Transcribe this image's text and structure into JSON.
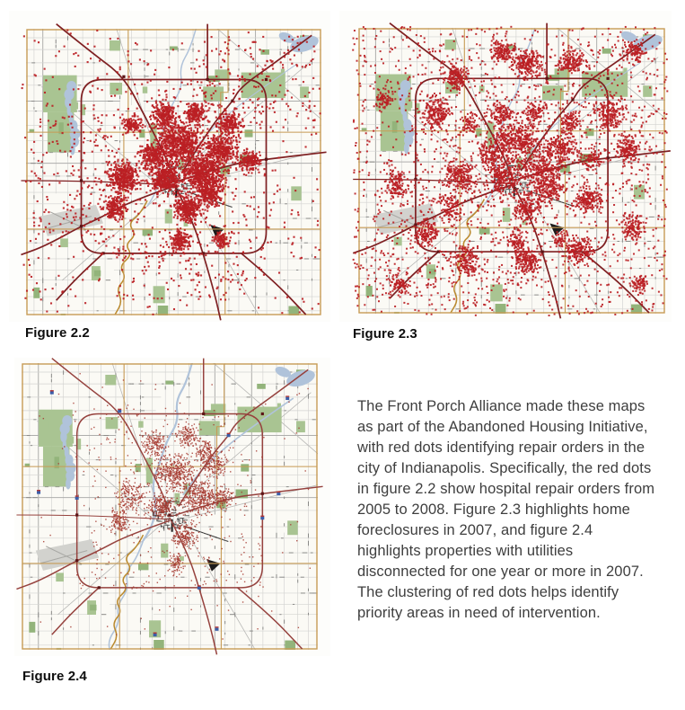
{
  "description": {
    "text": "The Front Porch Alliance made these maps as part of the Abandoned Housing Initiative, with red dots identifying repair orders in the city of Indianapolis. Specifically, the red dots in figure 2.2 show hospital repair orders from 2005 to 2008. Figure 2.3 highlights home foreclosures in 2007, and figure 2.4 highlights properties with utilities disconnected for one year or more in 2007. The clustering of red dots helps identify priority areas in need of intervention."
  },
  "map_style": {
    "tile_bg": "#fdfdfb",
    "county_bg": "#fbfaf5",
    "boundary": "#c79b55",
    "street_light": "#d3d3d1",
    "street_dark": "#aeaeac",
    "street_tick": "#8a8a88",
    "diagonal": "#b9b9b7",
    "park": "#a9c492",
    "park_dark": "#93b47b",
    "water": "#b0c3da",
    "river_gold": "#bb8a2e",
    "airport_fill": "#d2d2ce",
    "airport_line": "#a8a8a4",
    "highway": "#7f2022",
    "highway_node": "#5c1416",
    "highway_fig24": "#96423e",
    "downtown": "#4c4c4c",
    "black_mark": "#1c1c1c",
    "shield_blue": "#3c5da8",
    "shield_red": "#b03030"
  },
  "figures": [
    {
      "label": "Figure 2.2",
      "subject": "hospital repair orders from 2005 to 2008",
      "dot_color": "#bb1f24",
      "dot_size": 2.1,
      "dot_alpha": 0.92,
      "dot_seed": 11,
      "clusters": [
        [
          0.52,
          0.4,
          0.085,
          0.075,
          650
        ],
        [
          0.6,
          0.5,
          0.08,
          0.07,
          550
        ],
        [
          0.47,
          0.52,
          0.06,
          0.06,
          420
        ],
        [
          0.55,
          0.63,
          0.05,
          0.05,
          300
        ],
        [
          0.66,
          0.42,
          0.06,
          0.05,
          320
        ],
        [
          0.43,
          0.44,
          0.045,
          0.05,
          230
        ],
        [
          0.33,
          0.52,
          0.055,
          0.06,
          380
        ],
        [
          0.3,
          0.63,
          0.04,
          0.045,
          170
        ],
        [
          0.47,
          0.3,
          0.045,
          0.05,
          230
        ],
        [
          0.575,
          0.295,
          0.04,
          0.04,
          160
        ],
        [
          0.69,
          0.33,
          0.045,
          0.04,
          180
        ],
        [
          0.76,
          0.46,
          0.04,
          0.04,
          150
        ],
        [
          0.62,
          0.57,
          0.05,
          0.05,
          260
        ],
        [
          0.52,
          0.74,
          0.035,
          0.045,
          150
        ],
        [
          0.66,
          0.74,
          0.03,
          0.03,
          90
        ],
        [
          0.36,
          0.33,
          0.035,
          0.035,
          110
        ]
      ],
      "scatter": [
        [
          -0.02,
          0.0,
          1.0,
          1.0,
          420
        ],
        [
          0.15,
          0.12,
          0.85,
          0.8,
          280
        ],
        [
          0.55,
          0.02,
          1.0,
          0.35,
          150
        ],
        [
          0.02,
          0.3,
          0.3,
          0.75,
          120
        ],
        [
          0.3,
          0.72,
          0.75,
          0.95,
          120
        ]
      ]
    },
    {
      "label": "Figure 2.3",
      "subject": "home foreclosures in 2007",
      "dot_color": "#bb1f24",
      "dot_size": 2.0,
      "dot_alpha": 0.92,
      "dot_seed": 23,
      "clusters": [
        [
          0.52,
          0.4,
          0.085,
          0.075,
          360
        ],
        [
          0.6,
          0.5,
          0.08,
          0.07,
          300
        ],
        [
          0.47,
          0.52,
          0.06,
          0.06,
          230
        ],
        [
          0.55,
          0.63,
          0.05,
          0.05,
          165
        ],
        [
          0.66,
          0.42,
          0.06,
          0.05,
          175
        ],
        [
          0.43,
          0.44,
          0.045,
          0.05,
          125
        ],
        [
          0.33,
          0.52,
          0.055,
          0.06,
          210
        ],
        [
          0.3,
          0.63,
          0.04,
          0.045,
          95
        ],
        [
          0.47,
          0.3,
          0.045,
          0.05,
          125
        ],
        [
          0.575,
          0.295,
          0.04,
          0.04,
          90
        ],
        [
          0.69,
          0.33,
          0.045,
          0.04,
          100
        ],
        [
          0.76,
          0.46,
          0.04,
          0.04,
          85
        ],
        [
          0.62,
          0.57,
          0.05,
          0.05,
          145
        ],
        [
          0.52,
          0.74,
          0.035,
          0.045,
          85
        ],
        [
          0.66,
          0.74,
          0.03,
          0.03,
          50
        ],
        [
          0.36,
          0.33,
          0.035,
          0.035,
          60
        ],
        [
          0.25,
          0.3,
          0.05,
          0.06,
          200
        ],
        [
          0.32,
          0.17,
          0.04,
          0.05,
          160
        ],
        [
          0.55,
          0.12,
          0.05,
          0.05,
          200
        ],
        [
          0.47,
          0.08,
          0.04,
          0.04,
          140
        ],
        [
          0.7,
          0.12,
          0.05,
          0.04,
          160
        ],
        [
          0.82,
          0.3,
          0.05,
          0.06,
          200
        ],
        [
          0.88,
          0.42,
          0.04,
          0.05,
          150
        ],
        [
          0.75,
          0.6,
          0.05,
          0.05,
          180
        ],
        [
          0.72,
          0.78,
          0.05,
          0.05,
          180
        ],
        [
          0.55,
          0.82,
          0.05,
          0.05,
          180
        ],
        [
          0.35,
          0.82,
          0.04,
          0.05,
          140
        ],
        [
          0.22,
          0.72,
          0.04,
          0.05,
          140
        ],
        [
          0.12,
          0.55,
          0.03,
          0.06,
          110
        ],
        [
          0.9,
          0.7,
          0.035,
          0.05,
          120
        ],
        [
          0.92,
          0.9,
          0.03,
          0.03,
          70
        ],
        [
          0.13,
          0.9,
          0.03,
          0.03,
          70
        ],
        [
          0.9,
          0.08,
          0.04,
          0.04,
          110
        ],
        [
          0.08,
          0.25,
          0.03,
          0.04,
          80
        ]
      ],
      "scatter": [
        [
          -0.02,
          -0.01,
          1.01,
          1.01,
          1400
        ],
        [
          0.15,
          0.05,
          0.95,
          0.6,
          330
        ],
        [
          0.05,
          0.55,
          0.6,
          0.95,
          240
        ]
      ]
    },
    {
      "label": "Figure 2.4",
      "subject": "properties with utilities disconnected for one year or more in 2007",
      "dot_color": "#a63a30",
      "dot_size": 1.4,
      "dot_alpha": 0.85,
      "dot_seed": 37,
      "clusters": [
        [
          0.52,
          0.38,
          0.075,
          0.07,
          380
        ],
        [
          0.6,
          0.47,
          0.065,
          0.06,
          330
        ],
        [
          0.47,
          0.5,
          0.05,
          0.05,
          210
        ],
        [
          0.55,
          0.6,
          0.045,
          0.05,
          170
        ],
        [
          0.37,
          0.46,
          0.05,
          0.055,
          170
        ],
        [
          0.33,
          0.55,
          0.04,
          0.04,
          110
        ],
        [
          0.45,
          0.28,
          0.045,
          0.05,
          150
        ],
        [
          0.56,
          0.25,
          0.04,
          0.04,
          120
        ],
        [
          0.65,
          0.35,
          0.05,
          0.045,
          150
        ],
        [
          0.68,
          0.47,
          0.04,
          0.04,
          110
        ],
        [
          0.52,
          0.7,
          0.03,
          0.04,
          80
        ],
        [
          0.62,
          0.3,
          0.035,
          0.035,
          90
        ]
      ],
      "scatter": [
        [
          0.18,
          0.15,
          0.82,
          0.8,
          300
        ],
        [
          0.02,
          0.02,
          0.98,
          0.97,
          130
        ]
      ]
    }
  ]
}
